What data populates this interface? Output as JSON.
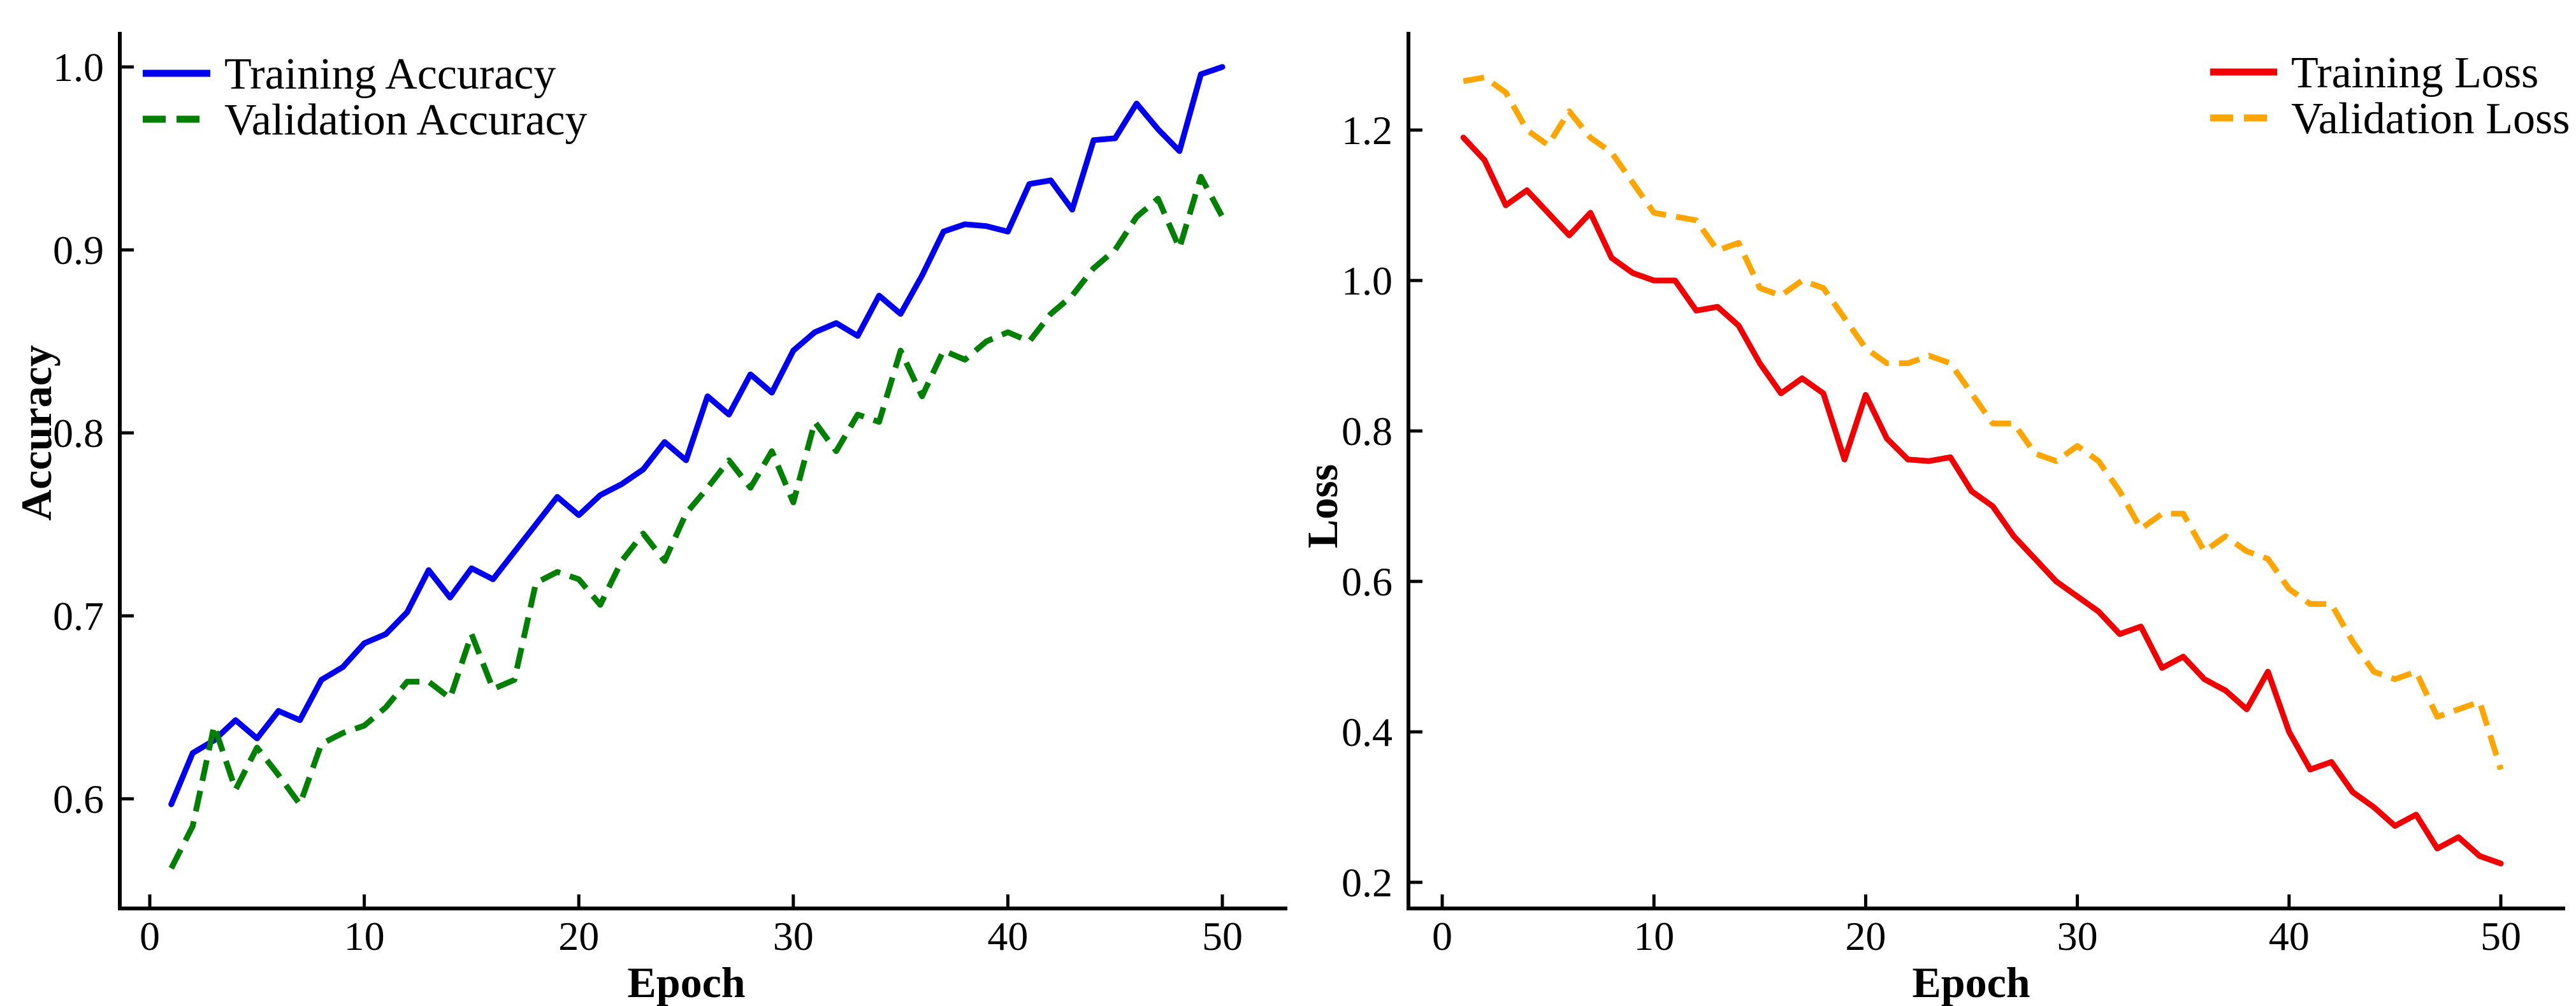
{
  "figure": {
    "background": "#ffffff",
    "text_color": "#000000"
  },
  "chart_data": [
    {
      "name": "accuracy",
      "type": "line",
      "title": "",
      "xlabel": "Epoch",
      "ylabel": "Accuracy",
      "grid": false,
      "legend_position": "top-left",
      "xlim": [
        -1.4,
        53.0
      ],
      "ylim": [
        0.54,
        1.017
      ],
      "xticks": {
        "values": [
          0,
          10,
          20,
          30,
          40,
          50
        ],
        "labels": [
          "0",
          "10",
          "20",
          "30",
          "40",
          "50"
        ]
      },
      "yticks": {
        "values": [
          0.6,
          0.7,
          0.8,
          0.9,
          1.0
        ],
        "labels": [
          "0.6",
          "0.7",
          "0.8",
          "0.9",
          "1.0"
        ]
      },
      "x": [
        1,
        2,
        3,
        4,
        5,
        6,
        7,
        8,
        9,
        10,
        11,
        12,
        13,
        14,
        15,
        16,
        17,
        18,
        19,
        20,
        21,
        22,
        23,
        24,
        25,
        26,
        27,
        28,
        29,
        30,
        31,
        32,
        33,
        34,
        35,
        36,
        37,
        38,
        39,
        40,
        41,
        42,
        43,
        44,
        45,
        46,
        47,
        48,
        49,
        50
      ],
      "series": [
        {
          "name": "Training Accuracy",
          "color": "#0000ee",
          "style": "solid",
          "values": [
            0.597,
            0.625,
            0.632,
            0.643,
            0.633,
            0.648,
            0.643,
            0.665,
            0.672,
            0.685,
            0.69,
            0.702,
            0.725,
            0.71,
            0.726,
            0.72,
            0.735,
            0.75,
            0.765,
            0.755,
            0.766,
            0.772,
            0.78,
            0.795,
            0.785,
            0.82,
            0.81,
            0.832,
            0.822,
            0.845,
            0.855,
            0.86,
            0.853,
            0.875,
            0.865,
            0.886,
            0.91,
            0.914,
            0.913,
            0.91,
            0.936,
            0.938,
            0.922,
            0.96,
            0.961,
            0.98,
            0.966,
            0.954,
            0.996,
            1.0
          ]
        },
        {
          "name": "Validation Accuracy",
          "color": "#008000",
          "style": "dashed",
          "values": [
            0.562,
            0.585,
            0.64,
            0.605,
            0.628,
            0.613,
            0.597,
            0.63,
            0.636,
            0.64,
            0.65,
            0.664,
            0.664,
            0.655,
            0.69,
            0.66,
            0.665,
            0.718,
            0.724,
            0.72,
            0.706,
            0.73,
            0.745,
            0.73,
            0.756,
            0.77,
            0.785,
            0.77,
            0.79,
            0.762,
            0.806,
            0.79,
            0.81,
            0.806,
            0.845,
            0.82,
            0.845,
            0.84,
            0.85,
            0.855,
            0.85,
            0.865,
            0.875,
            0.89,
            0.9,
            0.918,
            0.928,
            0.901,
            0.94,
            0.918
          ]
        }
      ]
    },
    {
      "name": "loss",
      "type": "line",
      "title": "",
      "xlabel": "Epoch",
      "ylabel": "Loss",
      "grid": false,
      "legend_position": "top-right",
      "xlim": [
        -1.6,
        53.0
      ],
      "ylim": [
        0.165,
        1.322
      ],
      "xticks": {
        "values": [
          0,
          10,
          20,
          30,
          40,
          50
        ],
        "labels": [
          "0",
          "10",
          "20",
          "30",
          "40",
          "50"
        ]
      },
      "yticks": {
        "values": [
          0.2,
          0.4,
          0.6,
          0.8,
          1.0,
          1.2
        ],
        "labels": [
          "0.2",
          "0.4",
          "0.6",
          "0.8",
          "1.0",
          "1.2"
        ]
      },
      "x": [
        1,
        2,
        3,
        4,
        5,
        6,
        7,
        8,
        9,
        10,
        11,
        12,
        13,
        14,
        15,
        16,
        17,
        18,
        19,
        20,
        21,
        22,
        23,
        24,
        25,
        26,
        27,
        28,
        29,
        30,
        31,
        32,
        33,
        34,
        35,
        36,
        37,
        38,
        39,
        40,
        41,
        42,
        43,
        44,
        45,
        46,
        47,
        48,
        49,
        50
      ],
      "series": [
        {
          "name": "Training Loss",
          "color": "#f10000",
          "style": "solid",
          "values": [
            1.19,
            1.16,
            1.1,
            1.12,
            1.09,
            1.06,
            1.09,
            1.03,
            1.01,
            1.0,
            1.0,
            0.96,
            0.965,
            0.94,
            0.89,
            0.85,
            0.87,
            0.85,
            0.762,
            0.848,
            0.79,
            0.762,
            0.76,
            0.765,
            0.72,
            0.7,
            0.66,
            0.63,
            0.6,
            0.58,
            0.56,
            0.53,
            0.54,
            0.485,
            0.5,
            0.47,
            0.455,
            0.43,
            0.48,
            0.4,
            0.35,
            0.36,
            0.32,
            0.3,
            0.275,
            0.29,
            0.245,
            0.26,
            0.235,
            0.225
          ]
        },
        {
          "name": "Validation Loss",
          "color": "#ffa500",
          "style": "dashed",
          "values": [
            1.265,
            1.27,
            1.25,
            1.2,
            1.18,
            1.225,
            1.19,
            1.17,
            1.13,
            1.09,
            1.085,
            1.08,
            1.04,
            1.05,
            0.99,
            0.98,
            1.0,
            0.99,
            0.95,
            0.91,
            0.89,
            0.89,
            0.9,
            0.89,
            0.85,
            0.81,
            0.81,
            0.77,
            0.76,
            0.78,
            0.76,
            0.72,
            0.67,
            0.69,
            0.69,
            0.64,
            0.66,
            0.64,
            0.63,
            0.59,
            0.57,
            0.57,
            0.52,
            0.48,
            0.47,
            0.48,
            0.42,
            0.43,
            0.44,
            0.35
          ]
        }
      ]
    }
  ]
}
